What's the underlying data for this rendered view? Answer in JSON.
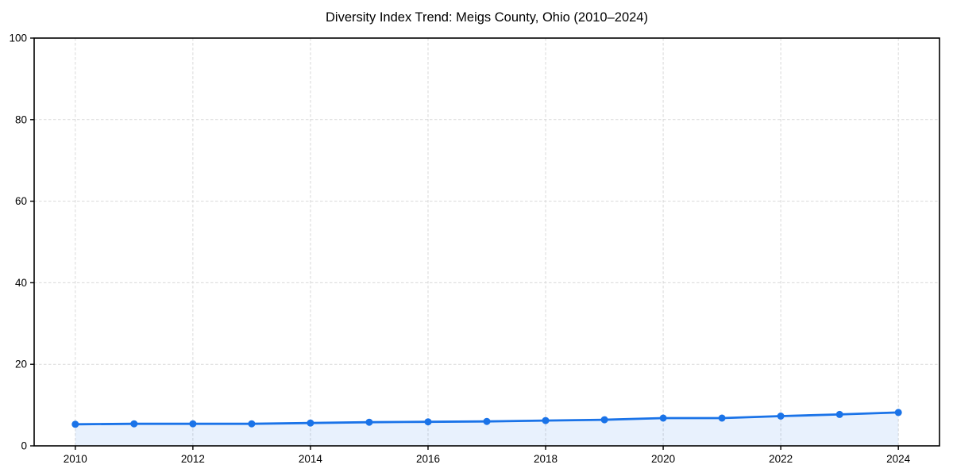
{
  "chart_data": {
    "type": "line",
    "title": "Diversity Index Trend: Meigs County, Ohio (2010–2024)",
    "series_label": "Diversity Index",
    "x": [
      2010,
      2011,
      2012,
      2013,
      2014,
      2015,
      2016,
      2017,
      2018,
      2019,
      2020,
      2021,
      2022,
      2023,
      2024
    ],
    "values": [
      5.3,
      5.4,
      5.4,
      5.4,
      5.6,
      5.8,
      5.9,
      6.0,
      6.2,
      6.4,
      6.8,
      6.8,
      7.3,
      7.7,
      8.2
    ],
    "xlabel": "",
    "ylabel": "",
    "xlim": [
      2009.3,
      2024.7
    ],
    "ylim": [
      0,
      100
    ],
    "xticks": [
      2010,
      2012,
      2014,
      2016,
      2018,
      2020,
      2022,
      2024
    ],
    "yticks": [
      0,
      20,
      40,
      60,
      80,
      100
    ],
    "grid": true,
    "grid_style": "dashed",
    "legend": "none",
    "colors": {
      "line": "#1a73e8",
      "marker": "#1a73e8",
      "area_fill": "rgba(26,115,232,0.10)",
      "grid": "#d9d9d9",
      "spine": "#000000",
      "text": "#000000"
    }
  }
}
